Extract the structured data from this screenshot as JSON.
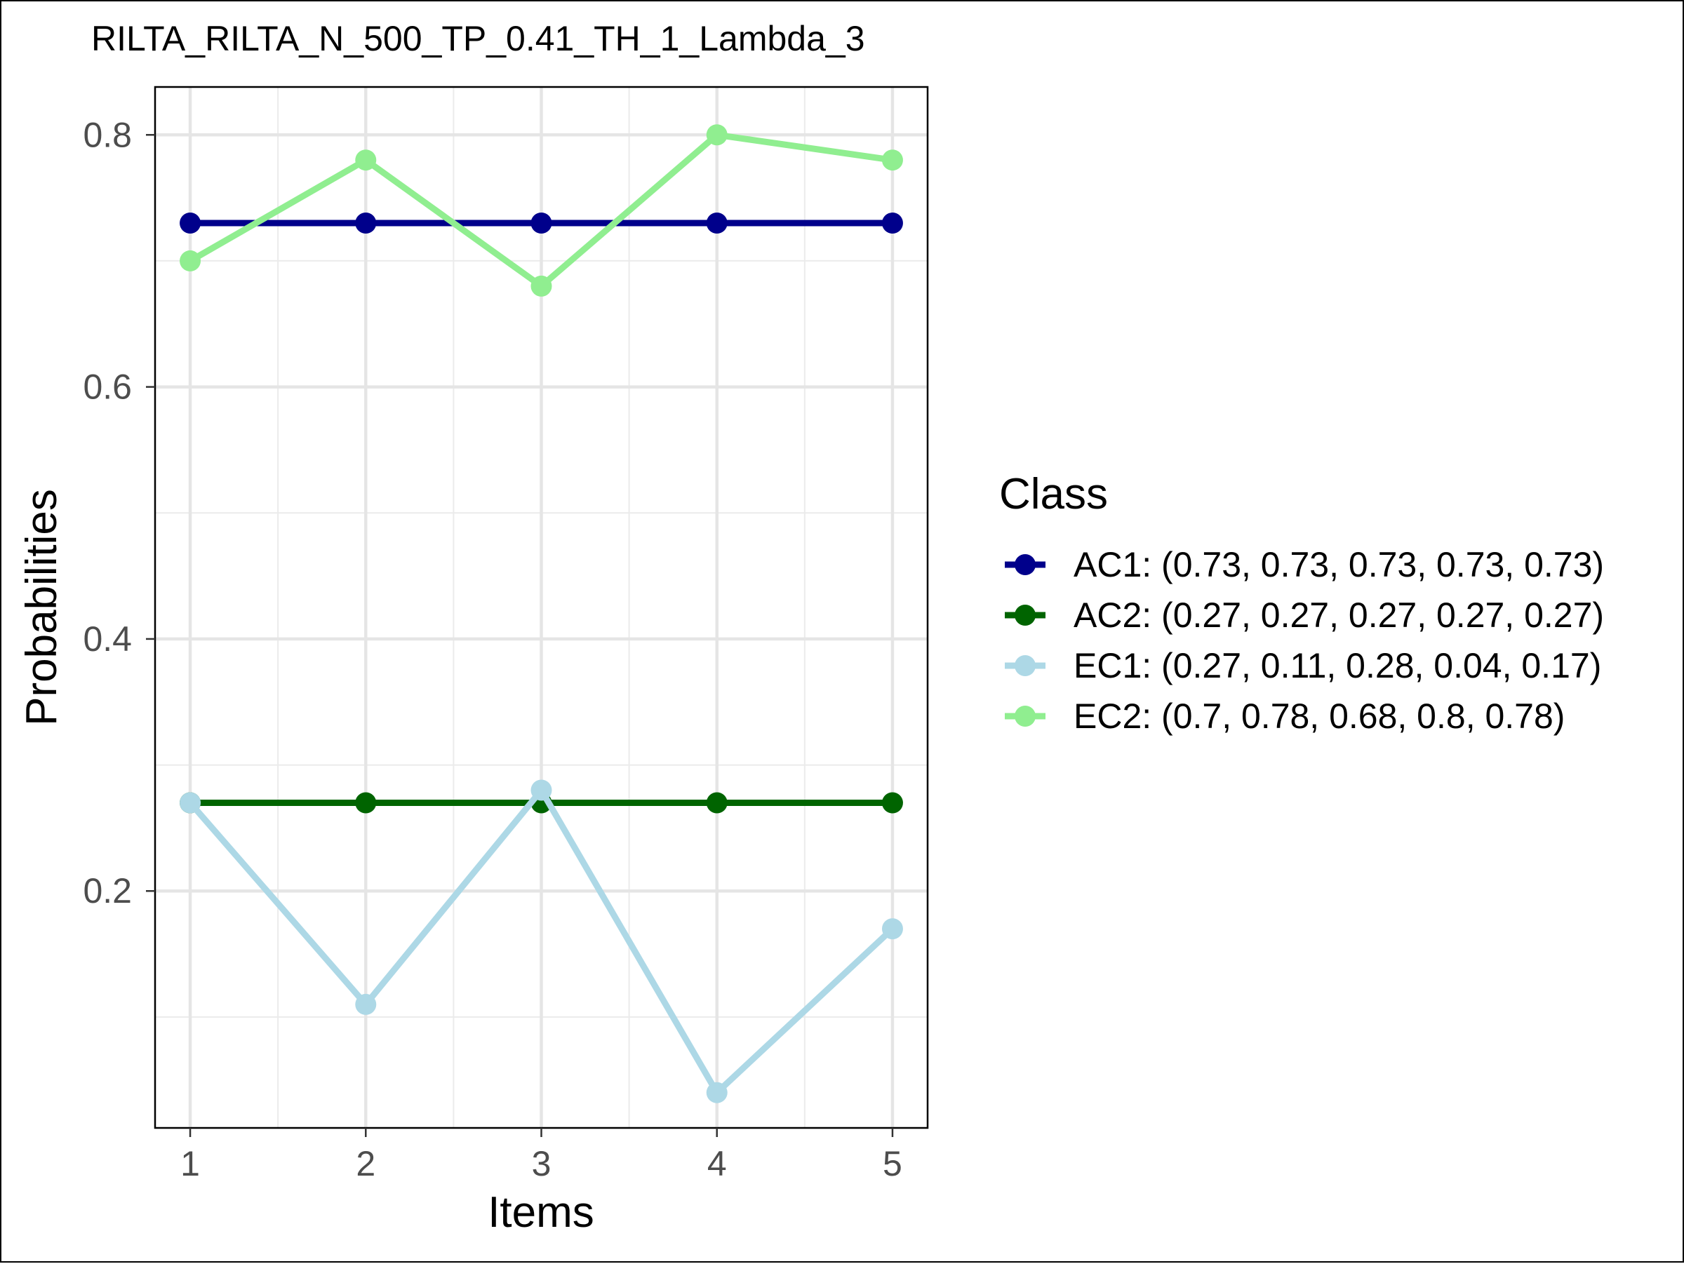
{
  "chart_data": {
    "type": "line",
    "title": "RILTA_RILTA_N_500_TP_0.41_TH_1_Lambda_3",
    "xlabel": "Items",
    "ylabel": "Probabilities",
    "x": [
      1,
      2,
      3,
      4,
      5
    ],
    "x_tick_labels": [
      "1",
      "2",
      "3",
      "4",
      "5"
    ],
    "y_ticks": [
      0.2,
      0.4,
      0.6,
      0.8
    ],
    "y_tick_labels": [
      "0.2",
      "0.4",
      "0.6",
      "0.8"
    ],
    "xlim": [
      0.8,
      5.2
    ],
    "ylim": [
      0.012,
      0.838
    ],
    "grid": true,
    "legend": {
      "title": "Class",
      "position": "right",
      "entries": [
        "AC1: (0.73, 0.73, 0.73, 0.73, 0.73)",
        "AC2: (0.27, 0.27, 0.27, 0.27, 0.27)",
        "EC1: (0.27, 0.11, 0.28, 0.04, 0.17)",
        "EC2: (0.7, 0.78, 0.68, 0.8, 0.78)"
      ]
    },
    "series": [
      {
        "name": "AC1",
        "color": "#00008b",
        "values": [
          0.73,
          0.73,
          0.73,
          0.73,
          0.73
        ]
      },
      {
        "name": "AC2",
        "color": "#006400",
        "values": [
          0.27,
          0.27,
          0.27,
          0.27,
          0.27
        ]
      },
      {
        "name": "EC1",
        "color": "#add8e6",
        "values": [
          0.27,
          0.11,
          0.28,
          0.04,
          0.17
        ]
      },
      {
        "name": "EC2",
        "color": "#90ee90",
        "values": [
          0.7,
          0.78,
          0.68,
          0.8,
          0.78
        ]
      }
    ]
  }
}
